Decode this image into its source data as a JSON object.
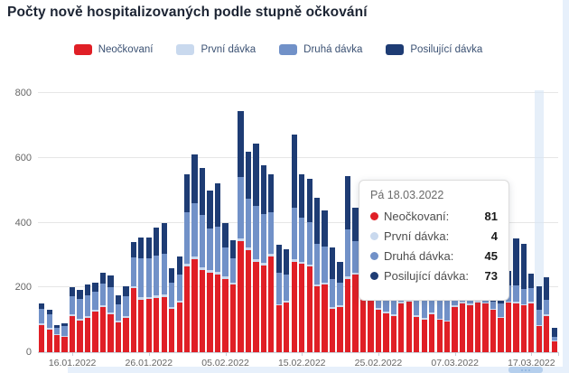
{
  "title": "Počty nově hospitalizovaných podle stupně očkování",
  "colors": {
    "neockovani": "#e01f26",
    "prvni": "#c9d9ee",
    "druha": "#7191c8",
    "posilujici": "#1e3c74",
    "hover_band": "#d7e5f6",
    "grid": "#e6e6e6",
    "axis_text": "#666666"
  },
  "legend": [
    {
      "label": "Neočkovaní",
      "color": "#e01f26"
    },
    {
      "label": "První dávka",
      "color": "#c9d9ee"
    },
    {
      "label": "Druhá dávka",
      "color": "#7191c8"
    },
    {
      "label": "Posilující dávka",
      "color": "#1e3c74"
    }
  ],
  "tooltip": {
    "date_label": "Pá 18.03.2022",
    "rows": [
      {
        "label": "Neočkovaní:",
        "value": "81",
        "color": "#e01f26"
      },
      {
        "label": "První dávka:",
        "value": "4",
        "color": "#c9d9ee"
      },
      {
        "label": "Druhá dávka:",
        "value": "45",
        "color": "#7191c8"
      },
      {
        "label": "Posilující dávka:",
        "value": "73",
        "color": "#1e3c74"
      }
    ]
  },
  "chart_data": {
    "type": "bar",
    "stacked": true,
    "title": "Počty nově hospitalizovaných podle stupně očkování",
    "ylim": [
      0,
      800
    ],
    "yticks": [
      0,
      200,
      400,
      600,
      800
    ],
    "grid": true,
    "legend_position": "top",
    "xtick_labels": [
      "16.01.2022",
      "26.01.2022",
      "05.02.2022",
      "15.02.2022",
      "25.02.2022",
      "07.03.2022",
      "17.03.2022"
    ],
    "xtick_indices": [
      4,
      14,
      24,
      34,
      44,
      54,
      64
    ],
    "hover_index": 65,
    "categories": [
      "12.01.2022",
      "13.01.2022",
      "14.01.2022",
      "15.01.2022",
      "16.01.2022",
      "17.01.2022",
      "18.01.2022",
      "19.01.2022",
      "20.01.2022",
      "21.01.2022",
      "22.01.2022",
      "23.01.2022",
      "24.01.2022",
      "25.01.2022",
      "26.01.2022",
      "27.01.2022",
      "28.01.2022",
      "29.01.2022",
      "30.01.2022",
      "31.01.2022",
      "01.02.2022",
      "02.02.2022",
      "03.02.2022",
      "04.02.2022",
      "05.02.2022",
      "06.02.2022",
      "07.02.2022",
      "08.02.2022",
      "09.02.2022",
      "10.02.2022",
      "11.02.2022",
      "12.02.2022",
      "13.02.2022",
      "14.02.2022",
      "15.02.2022",
      "16.02.2022",
      "17.02.2022",
      "18.02.2022",
      "19.02.2022",
      "20.02.2022",
      "21.02.2022",
      "22.02.2022",
      "23.02.2022",
      "24.02.2022",
      "25.02.2022",
      "26.02.2022",
      "27.02.2022",
      "28.02.2022",
      "01.03.2022",
      "02.03.2022",
      "03.03.2022",
      "04.03.2022",
      "05.03.2022",
      "06.03.2022",
      "07.03.2022",
      "08.03.2022",
      "09.03.2022",
      "10.03.2022",
      "11.03.2022",
      "12.03.2022",
      "13.03.2022",
      "14.03.2022",
      "15.03.2022",
      "16.03.2022",
      "17.03.2022",
      "18.03.2022",
      "19.03.2022",
      "20.03.2022"
    ],
    "series": [
      {
        "name": "Neočkovaní",
        "color": "#e01f26",
        "values": [
          85,
          71,
          52,
          47,
          112,
          98,
          107,
          126,
          140,
          116,
          93,
          107,
          197,
          163,
          165,
          168,
          171,
          135,
          154,
          265,
          287,
          255,
          246,
          241,
          227,
          209,
          343,
          315,
          280,
          269,
          296,
          144,
          154,
          278,
          273,
          264,
          204,
          209,
          135,
          140,
          227,
          240,
          250,
          237,
          131,
          120,
          112,
          151,
          155,
          108,
          100,
          117,
          100,
          95,
          140,
          150,
          146,
          153,
          150,
          131,
          107,
          153,
          150,
          144,
          151,
          81,
          112,
          33
        ]
      },
      {
        "name": "První dávka",
        "color": "#c9d9ee",
        "values": [
          4,
          4,
          3,
          3,
          4,
          5,
          5,
          4,
          5,
          6,
          4,
          5,
          6,
          7,
          6,
          7,
          7,
          5,
          5,
          8,
          8,
          8,
          7,
          7,
          6,
          5,
          9,
          8,
          8,
          7,
          7,
          5,
          5,
          8,
          7,
          7,
          6,
          6,
          5,
          4,
          7,
          6,
          6,
          6,
          6,
          5,
          5,
          6,
          6,
          6,
          5,
          5,
          4,
          4,
          5,
          5,
          5,
          5,
          4,
          3,
          3,
          4,
          5,
          5,
          4,
          4,
          4,
          2
        ]
      },
      {
        "name": "Druhá dávka",
        "color": "#7191c8",
        "values": [
          45,
          41,
          21,
          30,
          58,
          61,
          65,
          56,
          68,
          78,
          52,
          60,
          90,
          120,
          118,
          122,
          125,
          75,
          82,
          160,
          165,
          160,
          130,
          140,
          90,
          75,
          190,
          150,
          165,
          150,
          130,
          95,
          80,
          160,
          135,
          130,
          125,
          110,
          85,
          70,
          145,
          96,
          88,
          95,
          140,
          100,
          95,
          130,
          125,
          135,
          130,
          110,
          80,
          72,
          105,
          95,
          92,
          85,
          78,
          23,
          40,
          48,
          50,
          46,
          42,
          45,
          46,
          13
        ]
      },
      {
        "name": "Posilující dávka",
        "color": "#1e3c74",
        "values": [
          16,
          15,
          8,
          9,
          26,
          28,
          32,
          28,
          33,
          37,
          28,
          33,
          47,
          64,
          66,
          87,
          95,
          45,
          55,
          115,
          150,
          147,
          117,
          134,
          75,
          58,
          203,
          147,
          192,
          151,
          117,
          89,
          80,
          226,
          135,
          135,
          141,
          114,
          99,
          64,
          166,
          103,
          96,
          107,
          143,
          105,
          98,
          133,
          124,
          141,
          135,
          108,
          76,
          69,
          100,
          90,
          87,
          77,
          68,
          15,
          30,
          45,
          145,
          140,
          45,
          73,
          70,
          27
        ]
      }
    ]
  }
}
